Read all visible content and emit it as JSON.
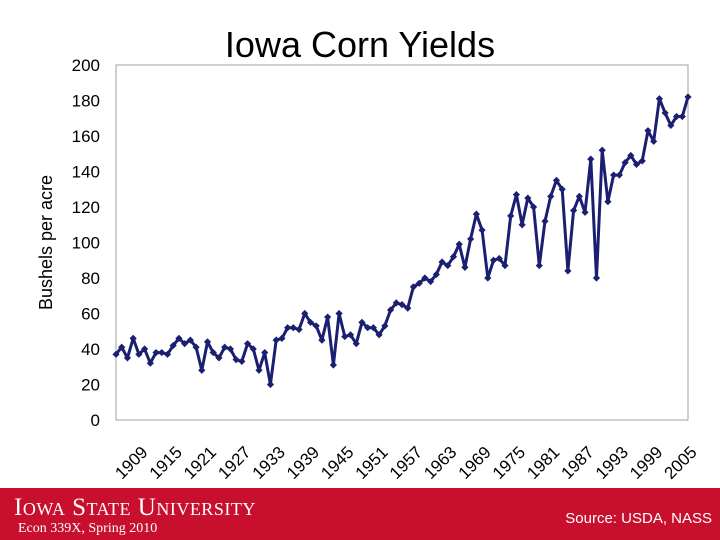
{
  "slide": {
    "logo_text": "Iowa State University",
    "course": "Econ 339X, Spring 2010",
    "source": "Source: USDA, NASS"
  },
  "colors": {
    "series": "#1a1f71",
    "footer": "#c8102e",
    "plot_border": "#a0a0a0",
    "grid_bg": "#ffffff"
  },
  "chart_data": {
    "type": "line",
    "title": "Iowa Corn Yields",
    "xlabel": "",
    "ylabel": "Bushels per acre",
    "ylim": [
      0,
      200
    ],
    "yticks": [
      0,
      20,
      40,
      60,
      80,
      100,
      120,
      140,
      160,
      180,
      200
    ],
    "xlim": [
      1909,
      2009
    ],
    "xticks": [
      1909,
      1915,
      1921,
      1927,
      1933,
      1939,
      1945,
      1951,
      1957,
      1963,
      1969,
      1975,
      1981,
      1987,
      1993,
      1999,
      2005
    ],
    "grid": false,
    "series": [
      {
        "name": "Iowa Corn Yield",
        "marker": "diamond",
        "x": [
          1909,
          1910,
          1911,
          1912,
          1913,
          1914,
          1915,
          1916,
          1917,
          1918,
          1919,
          1920,
          1921,
          1922,
          1923,
          1924,
          1925,
          1926,
          1927,
          1928,
          1929,
          1930,
          1931,
          1932,
          1933,
          1934,
          1935,
          1936,
          1937,
          1938,
          1939,
          1940,
          1941,
          1942,
          1943,
          1944,
          1945,
          1946,
          1947,
          1948,
          1949,
          1950,
          1951,
          1952,
          1953,
          1954,
          1955,
          1956,
          1957,
          1958,
          1959,
          1960,
          1961,
          1962,
          1963,
          1964,
          1965,
          1966,
          1967,
          1968,
          1969,
          1970,
          1971,
          1972,
          1973,
          1974,
          1975,
          1976,
          1977,
          1978,
          1979,
          1980,
          1981,
          1982,
          1983,
          1984,
          1985,
          1986,
          1987,
          1988,
          1989,
          1990,
          1991,
          1992,
          1993,
          1994,
          1995,
          1996,
          1997,
          1998,
          1999,
          2000,
          2001,
          2002,
          2003,
          2004,
          2005,
          2006,
          2007,
          2008,
          2009
        ],
        "values": [
          37,
          41,
          35,
          46,
          37,
          40,
          32,
          38,
          38,
          37,
          42,
          46,
          43,
          45,
          41,
          28,
          44,
          38,
          35,
          41,
          40,
          34,
          33,
          43,
          40,
          28,
          38,
          20,
          45,
          46,
          52,
          52,
          51,
          60,
          55,
          53,
          45,
          58,
          31,
          60,
          47,
          48,
          43,
          55,
          52,
          52,
          48,
          53,
          62,
          66,
          65,
          63,
          75,
          77,
          80,
          78,
          82,
          89,
          87,
          92,
          99,
          86,
          102,
          116,
          107,
          80,
          90,
          91,
          87,
          115,
          127,
          110,
          125,
          120,
          87,
          112,
          126,
          135,
          130,
          84,
          118,
          126,
          117,
          147,
          80,
          152,
          123,
          138,
          138,
          145,
          149,
          144,
          146,
          163,
          157,
          181,
          173,
          166,
          171,
          171,
          182
        ]
      }
    ]
  }
}
